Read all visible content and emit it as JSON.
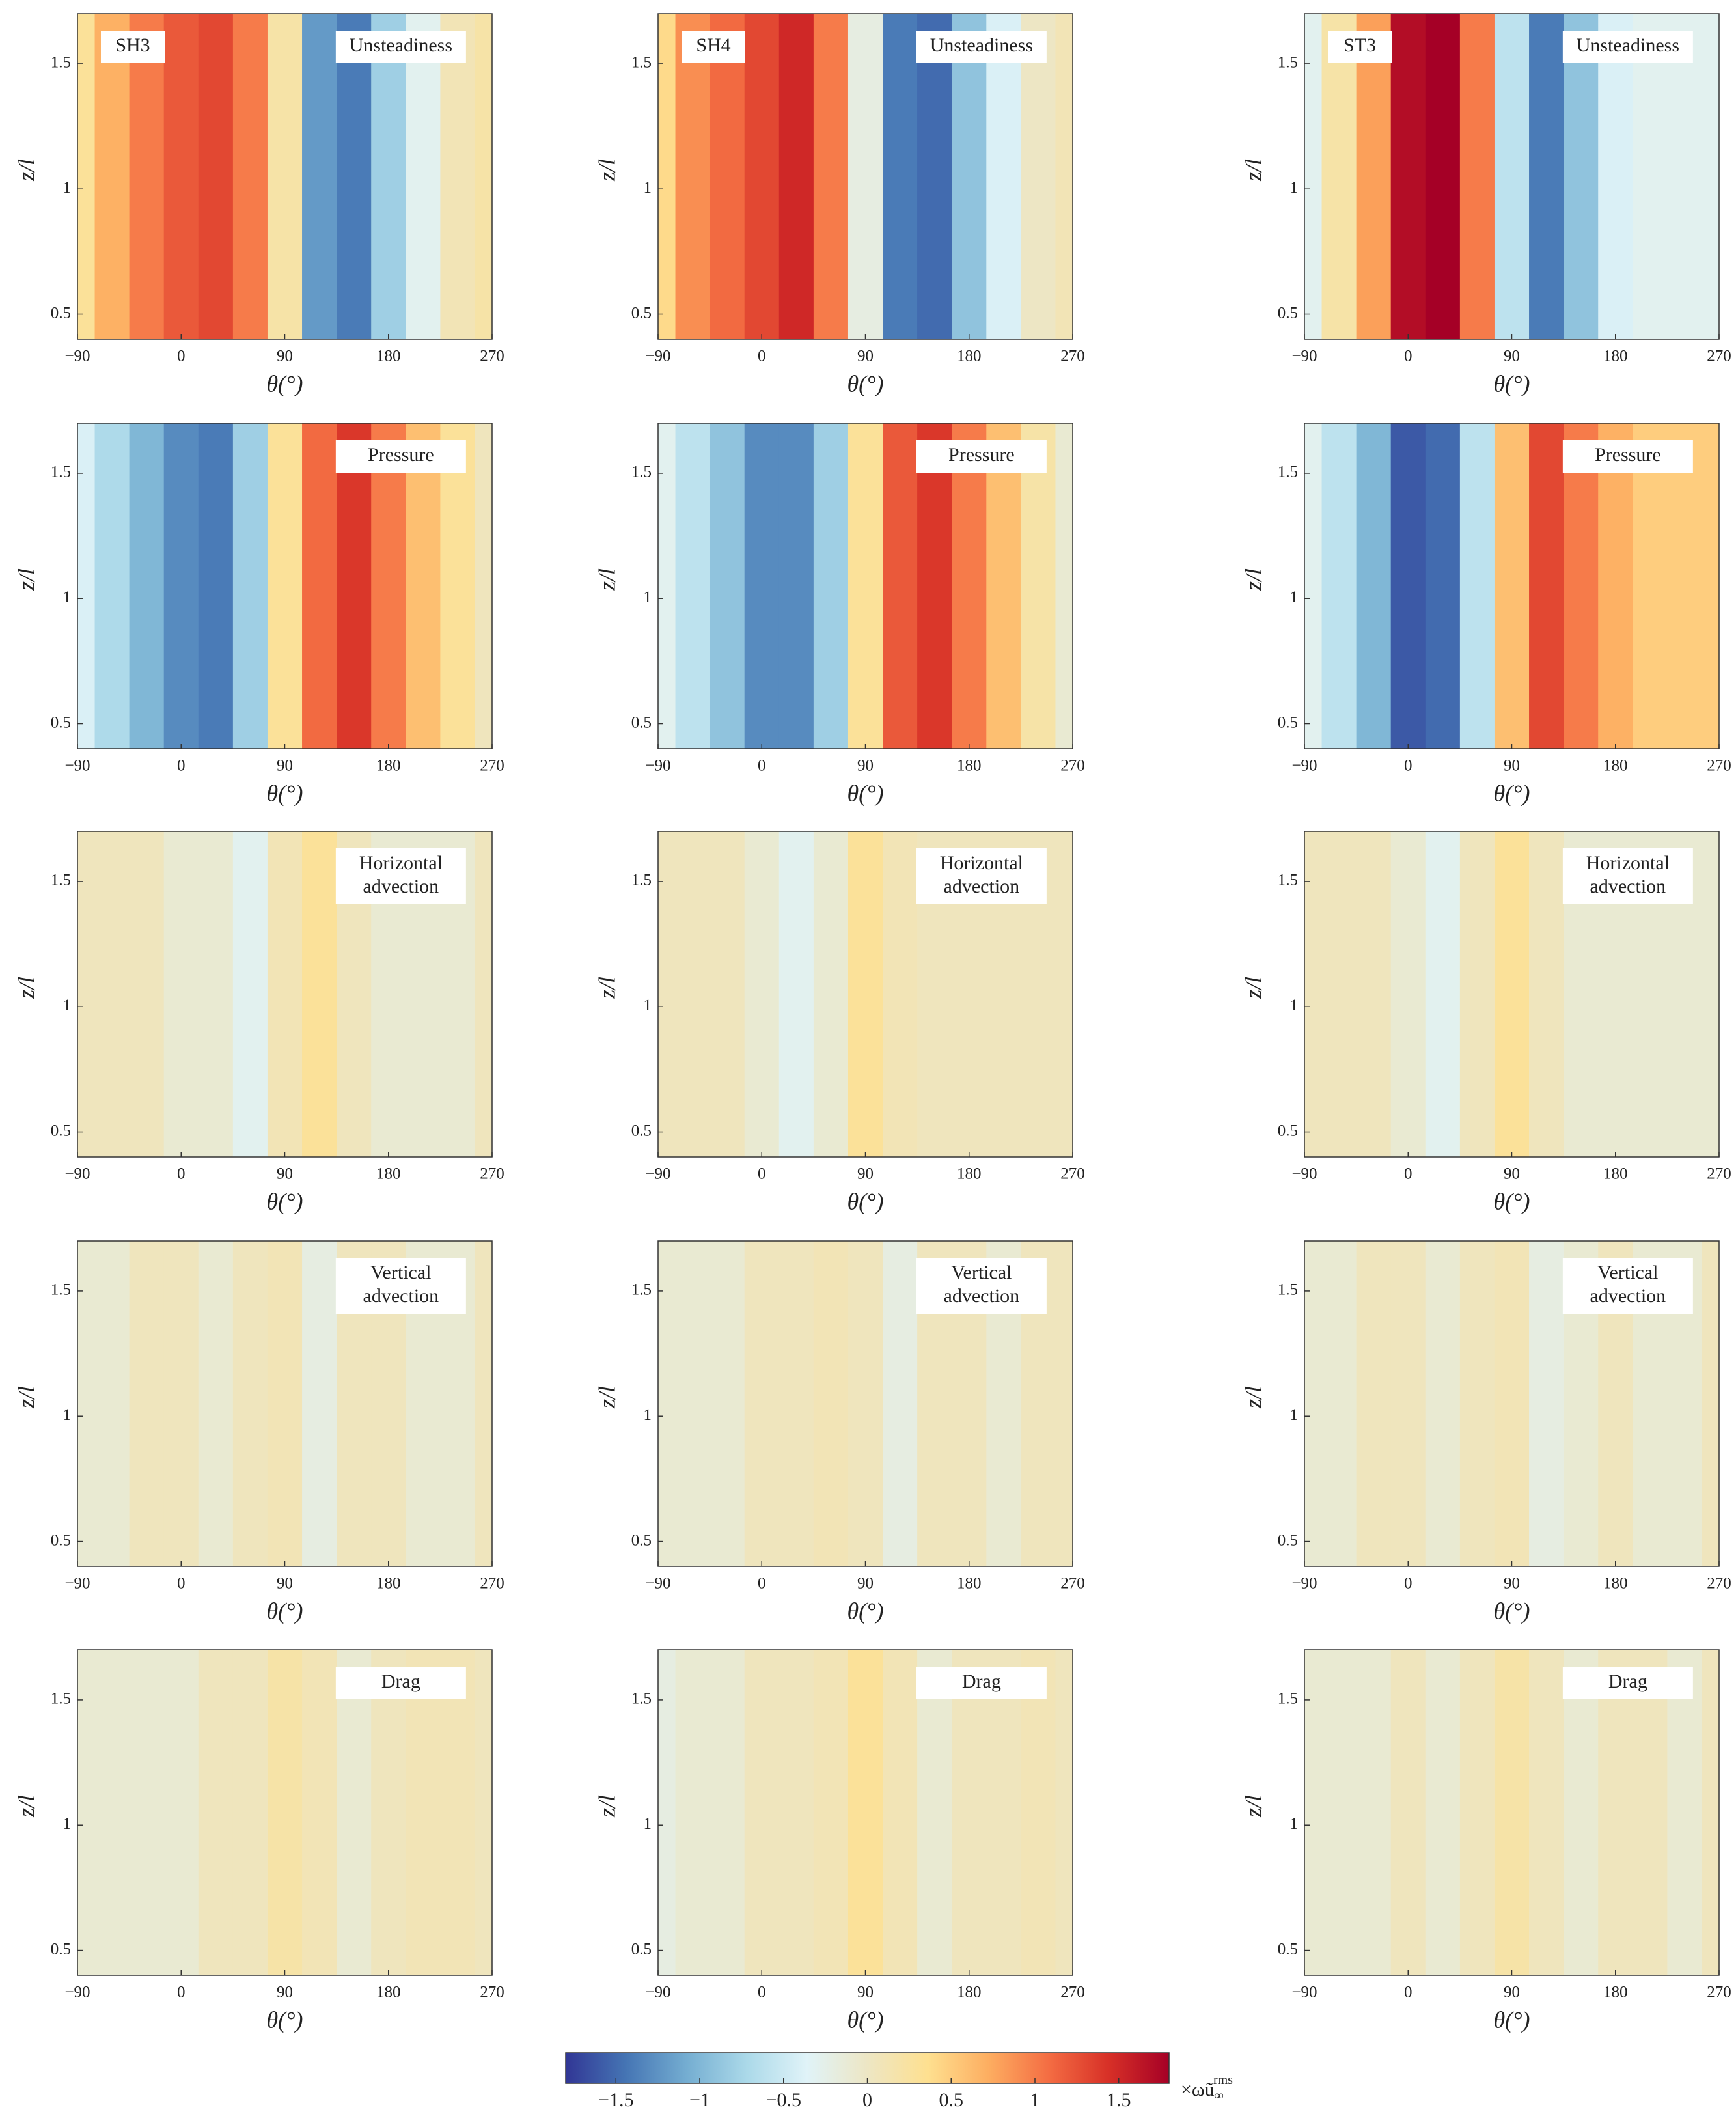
{
  "chart_data": [
    {
      "type": "contour",
      "case_label": "SH3",
      "label_lines": [
        "Unsteadiness"
      ],
      "x_label": "θ(°)",
      "y_label": "z/l",
      "xlim": [
        -90,
        270
      ],
      "xticks": [
        {
          "value": -90,
          "label": "−90"
        },
        0,
        90,
        180,
        270
      ],
      "ylim": [
        0.4,
        1.7
      ],
      "yticks": [
        0.5,
        1,
        1.5
      ],
      "x": [
        -90,
        -60,
        -30,
        0,
        30,
        60,
        90,
        120,
        150,
        180,
        210,
        240,
        270
      ],
      "values": [
        0.3,
        0.7,
        1.0,
        1.2,
        1.3,
        1.0,
        0.2,
        -1.2,
        -1.4,
        -0.8,
        -0.3,
        0.1,
        0.2
      ]
    },
    {
      "type": "contour",
      "case_label": "SH4",
      "label_lines": [
        "Unsteadiness"
      ],
      "x_label": "θ(°)",
      "y_label": "z/l",
      "xlim": [
        -90,
        270
      ],
      "xticks": [
        {
          "value": -90,
          "label": "−90"
        },
        0,
        90,
        180,
        270
      ],
      "ylim": [
        0.4,
        1.7
      ],
      "yticks": [
        0.5,
        1,
        1.5
      ],
      "x": [
        -90,
        -60,
        -30,
        0,
        30,
        60,
        90,
        120,
        150,
        180,
        210,
        240,
        270
      ],
      "values": [
        0.4,
        0.9,
        1.1,
        1.3,
        1.5,
        1.0,
        -0.2,
        -1.4,
        -1.5,
        -0.9,
        -0.4,
        0.0,
        0.1
      ]
    },
    {
      "type": "contour",
      "case_label": "ST3",
      "label_lines": [
        "Unsteadiness"
      ],
      "x_label": "θ(°)",
      "y_label": "z/l",
      "xlim": [
        -90,
        270
      ],
      "xticks": [
        {
          "value": -90,
          "label": "−90"
        },
        0,
        90,
        180,
        270
      ],
      "ylim": [
        0.4,
        1.7
      ],
      "yticks": [
        0.5,
        1,
        1.5
      ],
      "x": [
        -90,
        -60,
        -30,
        0,
        30,
        60,
        90,
        120,
        150,
        180,
        210,
        240,
        270
      ],
      "values": [
        -0.3,
        0.2,
        0.8,
        1.7,
        1.8,
        1.0,
        -0.6,
        -1.4,
        -0.9,
        -0.4,
        -0.3,
        -0.3,
        -0.3
      ]
    },
    {
      "type": "contour",
      "label_lines": [
        "Pressure"
      ],
      "x_label": "θ(°)",
      "y_label": "z/l",
      "xlim": [
        -90,
        270
      ],
      "xticks": [
        {
          "value": -90,
          "label": "−90"
        },
        0,
        90,
        180,
        270
      ],
      "ylim": [
        0.4,
        1.7
      ],
      "yticks": [
        0.5,
        1,
        1.5
      ],
      "x": [
        -90,
        -60,
        -30,
        0,
        30,
        60,
        90,
        120,
        150,
        180,
        210,
        240,
        270
      ],
      "values": [
        -0.4,
        -0.7,
        -1.0,
        -1.3,
        -1.4,
        -0.8,
        0.3,
        1.1,
        1.4,
        1.0,
        0.6,
        0.3,
        0.05
      ]
    },
    {
      "type": "contour",
      "label_lines": [
        "Pressure"
      ],
      "x_label": "θ(°)",
      "y_label": "z/l",
      "xlim": [
        -90,
        270
      ],
      "xticks": [
        {
          "value": -90,
          "label": "−90"
        },
        0,
        90,
        180,
        270
      ],
      "ylim": [
        0.4,
        1.7
      ],
      "yticks": [
        0.5,
        1,
        1.5
      ],
      "x": [
        -90,
        -60,
        -30,
        0,
        30,
        60,
        90,
        120,
        150,
        180,
        210,
        240,
        270
      ],
      "values": [
        -0.3,
        -0.6,
        -0.9,
        -1.3,
        -1.3,
        -0.8,
        0.3,
        1.2,
        1.4,
        1.0,
        0.6,
        0.2,
        -0.1
      ]
    },
    {
      "type": "contour",
      "label_lines": [
        "Pressure"
      ],
      "x_label": "θ(°)",
      "y_label": "z/l",
      "xlim": [
        -90,
        270
      ],
      "xticks": [
        {
          "value": -90,
          "label": "−90"
        },
        0,
        90,
        180,
        270
      ],
      "ylim": [
        0.4,
        1.7
      ],
      "yticks": [
        0.5,
        1,
        1.5
      ],
      "x": [
        -90,
        -60,
        -30,
        0,
        30,
        60,
        90,
        120,
        150,
        180,
        210,
        240,
        270
      ],
      "values": [
        -0.3,
        -0.6,
        -1.0,
        -1.6,
        -1.5,
        -0.6,
        0.6,
        1.3,
        1.0,
        0.7,
        0.5,
        0.5,
        0.5
      ]
    },
    {
      "type": "contour",
      "label_lines": [
        "Horizontal",
        "advection"
      ],
      "x_label": "θ(°)",
      "y_label": "z/l",
      "xlim": [
        -90,
        270
      ],
      "xticks": [
        {
          "value": -90,
          "label": "−90"
        },
        0,
        90,
        180,
        270
      ],
      "ylim": [
        0.4,
        1.7
      ],
      "yticks": [
        0.5,
        1,
        1.5
      ],
      "x": [
        -90,
        -60,
        -30,
        0,
        30,
        60,
        90,
        120,
        150,
        180,
        210,
        240,
        270
      ],
      "values": [
        0.05,
        0.05,
        0.05,
        -0.1,
        -0.1,
        -0.3,
        0.1,
        0.3,
        0.05,
        -0.1,
        -0.1,
        -0.1,
        0.05
      ]
    },
    {
      "type": "contour",
      "label_lines": [
        "Horizontal",
        "advection"
      ],
      "x_label": "θ(°)",
      "y_label": "z/l",
      "xlim": [
        -90,
        270
      ],
      "xticks": [
        {
          "value": -90,
          "label": "−90"
        },
        0,
        90,
        180,
        270
      ],
      "ylim": [
        0.4,
        1.7
      ],
      "yticks": [
        0.5,
        1,
        1.5
      ],
      "x": [
        -90,
        -60,
        -30,
        0,
        30,
        60,
        90,
        120,
        150,
        180,
        210,
        240,
        270
      ],
      "values": [
        0.05,
        0.05,
        0.05,
        -0.1,
        -0.3,
        -0.1,
        0.3,
        0.1,
        0.05,
        0.05,
        0.05,
        0.05,
        0.05
      ]
    },
    {
      "type": "contour",
      "label_lines": [
        "Horizontal",
        "advection"
      ],
      "x_label": "θ(°)",
      "y_label": "z/l",
      "xlim": [
        -90,
        270
      ],
      "xticks": [
        {
          "value": -90,
          "label": "−90"
        },
        0,
        90,
        180,
        270
      ],
      "ylim": [
        0.4,
        1.7
      ],
      "yticks": [
        0.5,
        1,
        1.5
      ],
      "x": [
        -90,
        -60,
        -30,
        0,
        30,
        60,
        90,
        120,
        150,
        180,
        210,
        240,
        270
      ],
      "values": [
        0.05,
        0.05,
        0.05,
        -0.1,
        -0.3,
        0.05,
        0.3,
        0.05,
        -0.1,
        -0.1,
        -0.1,
        -0.1,
        -0.1
      ]
    },
    {
      "type": "contour",
      "label_lines": [
        "Vertical",
        "advection"
      ],
      "x_label": "θ(°)",
      "y_label": "z/l",
      "xlim": [
        -90,
        270
      ],
      "xticks": [
        {
          "value": -90,
          "label": "−90"
        },
        0,
        90,
        180,
        270
      ],
      "ylim": [
        0.4,
        1.7
      ],
      "yticks": [
        0.5,
        1,
        1.5
      ],
      "x": [
        -90,
        -60,
        -30,
        0,
        30,
        60,
        90,
        120,
        150,
        180,
        210,
        240,
        270
      ],
      "values": [
        -0.1,
        -0.1,
        0.05,
        0.05,
        -0.1,
        0.05,
        0.1,
        -0.2,
        0.05,
        0.05,
        -0.1,
        -0.1,
        0.05
      ]
    },
    {
      "type": "contour",
      "label_lines": [
        "Vertical",
        "advection"
      ],
      "x_label": "θ(°)",
      "y_label": "z/l",
      "xlim": [
        -90,
        270
      ],
      "xticks": [
        {
          "value": -90,
          "label": "−90"
        },
        0,
        90,
        180,
        270
      ],
      "ylim": [
        0.4,
        1.7
      ],
      "yticks": [
        0.5,
        1,
        1.5
      ],
      "x": [
        -90,
        -60,
        -30,
        0,
        30,
        60,
        90,
        120,
        150,
        180,
        210,
        240,
        270
      ],
      "values": [
        -0.1,
        -0.1,
        -0.1,
        0.05,
        0.05,
        0.1,
        0.05,
        -0.2,
        0.05,
        0.05,
        -0.1,
        0.05,
        0.05
      ]
    },
    {
      "type": "contour",
      "label_lines": [
        "Vertical",
        "advection"
      ],
      "x_label": "θ(°)",
      "y_label": "z/l",
      "xlim": [
        -90,
        270
      ],
      "xticks": [
        {
          "value": -90,
          "label": "−90"
        },
        0,
        90,
        180,
        270
      ],
      "ylim": [
        0.4,
        1.7
      ],
      "yticks": [
        0.5,
        1,
        1.5
      ],
      "x": [
        -90,
        -60,
        -30,
        0,
        30,
        60,
        90,
        120,
        150,
        180,
        210,
        240,
        270
      ],
      "values": [
        -0.1,
        -0.1,
        0.05,
        0.05,
        -0.1,
        0.05,
        0.1,
        -0.2,
        -0.1,
        0.05,
        -0.1,
        -0.1,
        0.05
      ]
    },
    {
      "type": "contour",
      "label_lines": [
        "Drag"
      ],
      "x_label": "θ(°)",
      "y_label": "z/l",
      "xlim": [
        -90,
        270
      ],
      "xticks": [
        {
          "value": -90,
          "label": "−90"
        },
        0,
        90,
        180,
        270
      ],
      "ylim": [
        0.4,
        1.7
      ],
      "yticks": [
        0.5,
        1,
        1.5
      ],
      "x": [
        -90,
        -60,
        -30,
        0,
        30,
        60,
        90,
        120,
        150,
        180,
        210,
        240,
        270
      ],
      "values": [
        -0.1,
        -0.1,
        -0.1,
        -0.1,
        0.05,
        0.05,
        0.2,
        0.1,
        -0.1,
        0.05,
        0.1,
        0.1,
        0.05
      ]
    },
    {
      "type": "contour",
      "label_lines": [
        "Drag"
      ],
      "x_label": "θ(°)",
      "y_label": "z/l",
      "xlim": [
        -90,
        270
      ],
      "xticks": [
        {
          "value": -90,
          "label": "−90"
        },
        0,
        90,
        180,
        270
      ],
      "ylim": [
        0.4,
        1.7
      ],
      "yticks": [
        0.5,
        1,
        1.5
      ],
      "x": [
        -90,
        -60,
        -30,
        0,
        30,
        60,
        90,
        120,
        150,
        180,
        210,
        240,
        270
      ],
      "values": [
        -0.2,
        -0.1,
        -0.1,
        0.05,
        0.05,
        0.1,
        0.3,
        0.1,
        -0.1,
        0.05,
        0.05,
        0.1,
        0.05
      ]
    },
    {
      "type": "contour",
      "label_lines": [
        "Drag"
      ],
      "x_label": "θ(°)",
      "y_label": "z/l",
      "xlim": [
        -90,
        270
      ],
      "xticks": [
        {
          "value": -90,
          "label": "−90"
        },
        0,
        90,
        180,
        270
      ],
      "ylim": [
        0.4,
        1.7
      ],
      "yticks": [
        0.5,
        1,
        1.5
      ],
      "x": [
        -90,
        -60,
        -30,
        0,
        30,
        60,
        90,
        120,
        150,
        180,
        210,
        240,
        270
      ],
      "values": [
        -0.1,
        -0.1,
        -0.1,
        0.05,
        -0.1,
        0.05,
        0.2,
        0.05,
        -0.1,
        0.05,
        0.05,
        -0.1,
        0.05
      ]
    },
    {
      "type": "colorbar",
      "clim": [
        -1.8,
        1.8
      ],
      "colors": [
        "#313695",
        "#4575b4",
        "#74add1",
        "#abd9e9",
        "#e0f3f8",
        "#ede6c4",
        "#fee090",
        "#fdae61",
        "#f46d43",
        "#d73027",
        "#a50026"
      ],
      "ticks": [
        {
          "value": -1.5,
          "label": "−1.5"
        },
        {
          "value": -1,
          "label": "−1"
        },
        {
          "value": -0.5,
          "label": "−0.5"
        },
        0,
        0.5,
        1,
        1.5
      ],
      "label": {
        "base": "×ωũ",
        "sub": "∞",
        "sup": "rms"
      }
    }
  ]
}
